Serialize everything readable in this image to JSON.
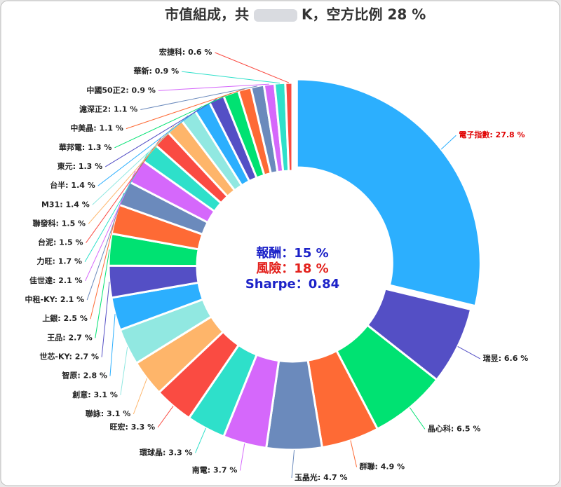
{
  "chart_data": {
    "type": "donut",
    "title_parts": [
      "市值組成，共",
      "K，空方比例 28 %"
    ],
    "annotations": [
      {
        "text": "報酬：15 %",
        "color": "#1c22c8"
      },
      {
        "text": "風險：18 %",
        "color": "#e3211c"
      },
      {
        "text": "Sharpe：0.84",
        "color": "#1c22c8"
      }
    ],
    "values": [
      27.8,
      6.6,
      6.5,
      4.9,
      4.7,
      3.7,
      3.3,
      3.3,
      3.1,
      3.1,
      2.8,
      2.7,
      2.7,
      2.5,
      2.1,
      2.1,
      1.7,
      1.5,
      1.5,
      1.4,
      1.4,
      1.3,
      1.3,
      1.1,
      1.1,
      0.9,
      0.9,
      0.6
    ],
    "value_labels": [
      "電子指數: 27.8 %",
      "瑞昱: 6.6 %",
      "晶心科: 6.5 %",
      "群聯: 4.9 %",
      "玉晶光: 4.7 %",
      "南電: 3.7 %",
      "環球晶: 3.3 %",
      "旺宏: 3.3 %",
      "聯詠: 3.1 %",
      "創意: 3.1 %",
      "智原: 2.8 %",
      "世芯-KY: 2.7 %",
      "王品: 2.7 %",
      "上銀: 2.5 %",
      "中租-KY: 2.1 %",
      "佳世達: 2.1 %",
      "力旺: 1.7 %",
      "台泥: 1.5 %",
      "聯發科: 1.5 %",
      "M31: 1.4 %",
      "台半: 1.4 %",
      "東元: 1.3 %",
      "華邦電: 1.3 %",
      "中美晶: 1.1 %",
      "滬深正2: 1.1 %",
      "中國50正2: 0.9 %",
      "華新: 0.9 %",
      "宏捷科: 0.6 %"
    ],
    "colors": [
      "#2caffe",
      "#544fc5",
      "#00e272",
      "#fe6a35",
      "#6b8abc",
      "#d568fb",
      "#2ee0ca",
      "#fa4b42",
      "#feb56a",
      "#91e8e1"
    ],
    "label_color": "#222222",
    "highlight_label": {
      "index": 0,
      "color": "#e00000"
    }
  }
}
